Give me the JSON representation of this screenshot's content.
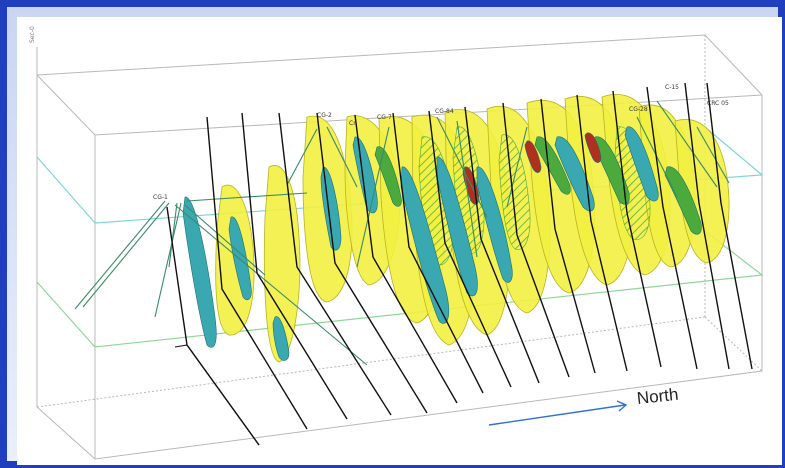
{
  "figure": {
    "direction_label": "North",
    "axis_tick_label": "Sec-0",
    "hole_labels": [
      "CRC 05",
      "C-15",
      "CG-84",
      "CG-28",
      "CG-2",
      "CG-7",
      "CG-1",
      "Cr"
    ]
  },
  "colors": {
    "frame_border": "#1f3fbf",
    "orebody_yellow": "#f2f040",
    "orebody_outline": "#b8b420",
    "lens_teal": "#3aa8b0",
    "lens_green": "#4caa3c",
    "lens_red": "#b03020",
    "section_line": "#111111",
    "box_edge": "#b8b8b8",
    "horizon_teal": "#7fd6d6",
    "horizon_green": "#8fd69a",
    "north_arrow": "#2f6fd8"
  },
  "sections": {
    "count": 14
  }
}
